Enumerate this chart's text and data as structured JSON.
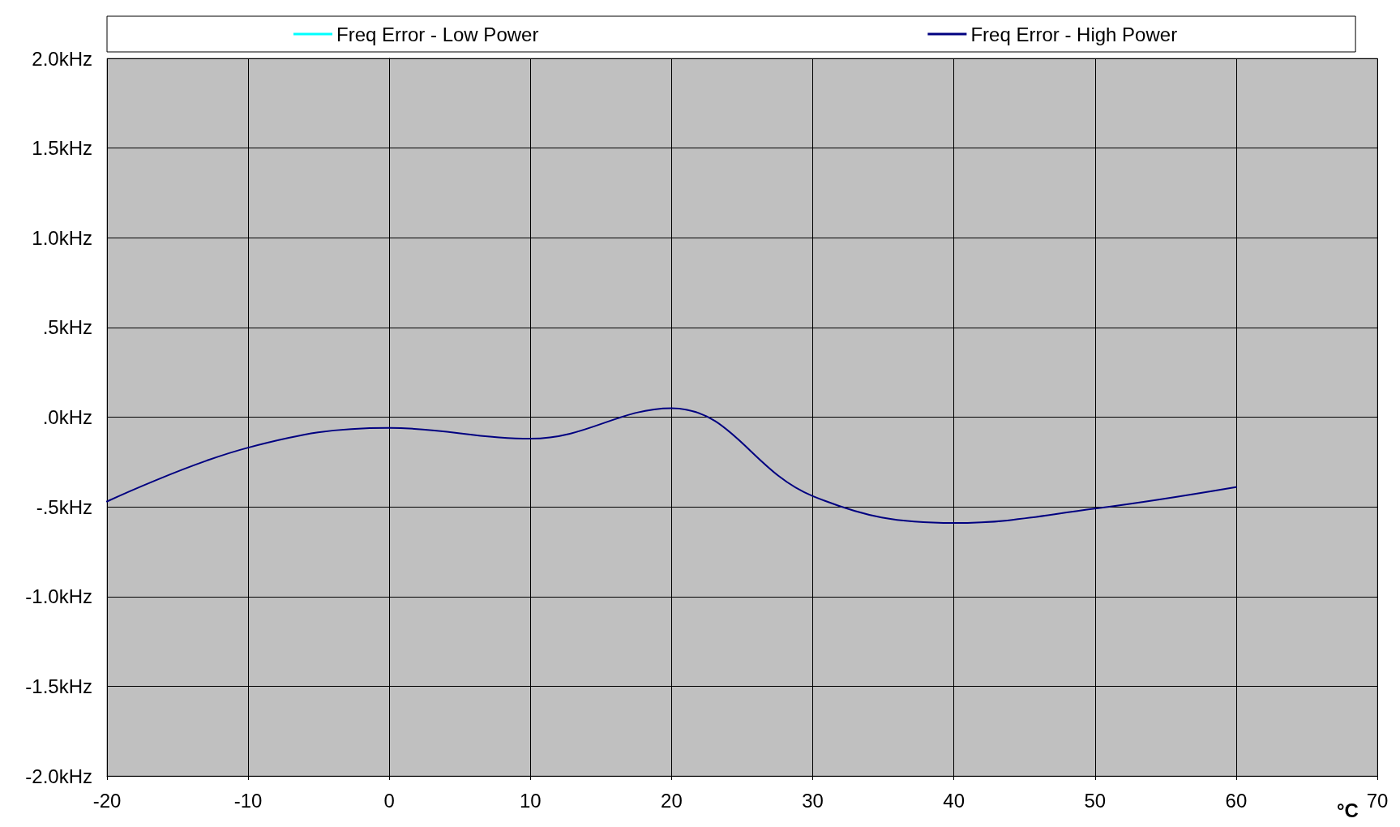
{
  "chart_data": {
    "type": "line",
    "xlabel": "°C",
    "x": [
      -20,
      -10,
      0,
      10,
      20,
      30,
      40,
      50,
      60
    ],
    "series": [
      {
        "name": "Freq Error - Low Power",
        "color": "#00ffff",
        "values": [
          null,
          null,
          null,
          null,
          null,
          null,
          null,
          null,
          null
        ]
      },
      {
        "name": "Freq Error - High Power",
        "color": "#000080",
        "values": [
          -0.47,
          -0.17,
          -0.06,
          -0.12,
          0.05,
          -0.44,
          -0.59,
          -0.51,
          -0.39
        ]
      }
    ],
    "xlim": [
      -20,
      70
    ],
    "xticks": [
      -20,
      -10,
      0,
      10,
      20,
      30,
      40,
      50,
      60,
      70
    ],
    "ylim": [
      -2,
      2
    ],
    "yticks": [
      {
        "value": -2,
        "label": "-2.0kHz"
      },
      {
        "value": -1.5,
        "label": "-1.5kHz"
      },
      {
        "value": -1,
        "label": "-1.0kHz"
      },
      {
        "value": -0.5,
        "label": "-.5kHz"
      },
      {
        "value": 0,
        "label": ".0kHz"
      },
      {
        "value": 0.5,
        "label": ".5kHz"
      },
      {
        "value": 1,
        "label": "1.0kHz"
      },
      {
        "value": 1.5,
        "label": "1.5kHz"
      },
      {
        "value": 2,
        "label": "2.0kHz"
      }
    ],
    "grid": true,
    "legend": "top",
    "marker": "none",
    "line_style": "solid"
  }
}
